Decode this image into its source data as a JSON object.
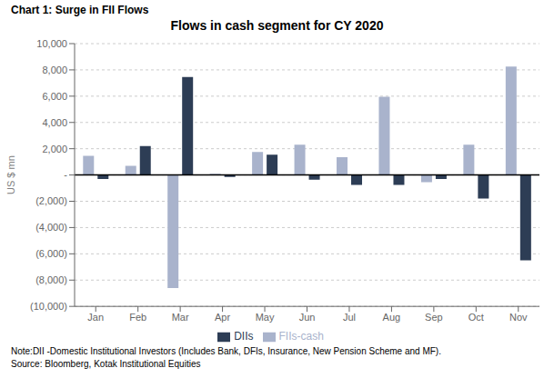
{
  "chart_data": {
    "type": "bar",
    "title": "Flows in cash segment for CY 2020",
    "subtitle": "Chart 1: Surge in FII Flows",
    "annotations": [
      "Note:DII -Domestic Institutional Investors (Includes Bank, DFIs, Insurance, New Pension Scheme and MF).",
      "Source: Bloomberg, Kotak Institutional Equities"
    ],
    "ylabel": "US $ mn",
    "categories": [
      "Jan",
      "Feb",
      "Mar",
      "Apr",
      "May",
      "Jun",
      "Jul",
      "Aug",
      "Sep",
      "Oct",
      "Nov"
    ],
    "series": [
      {
        "name": "FIIs-cash",
        "color": "#a9b3cc",
        "values": [
          1450,
          700,
          -8600,
          100,
          1750,
          2300,
          1350,
          5950,
          -550,
          2300,
          8250
        ]
      },
      {
        "name": "DIIs",
        "color": "#2d3d55",
        "values": [
          -300,
          2200,
          7450,
          -150,
          1550,
          -350,
          -750,
          -750,
          -300,
          -1800,
          -6500
        ]
      }
    ],
    "ylim": [
      -10000,
      10000
    ],
    "yticks": [
      {
        "value": -10000,
        "label": "(10,000)"
      },
      {
        "value": -8000,
        "label": "(8,000)"
      },
      {
        "value": -6000,
        "label": "(6,000)"
      },
      {
        "value": -4000,
        "label": "(4,000)"
      },
      {
        "value": -2000,
        "label": "(2,000)"
      },
      {
        "value": 0,
        "label": "-"
      },
      {
        "value": 2000,
        "label": "2,000"
      },
      {
        "value": 4000,
        "label": "4,000"
      },
      {
        "value": 6000,
        "label": "6,000"
      },
      {
        "value": 8000,
        "label": "8,000"
      },
      {
        "value": 10000,
        "label": "10,000"
      }
    ],
    "grid": true,
    "legend": "bottom"
  }
}
